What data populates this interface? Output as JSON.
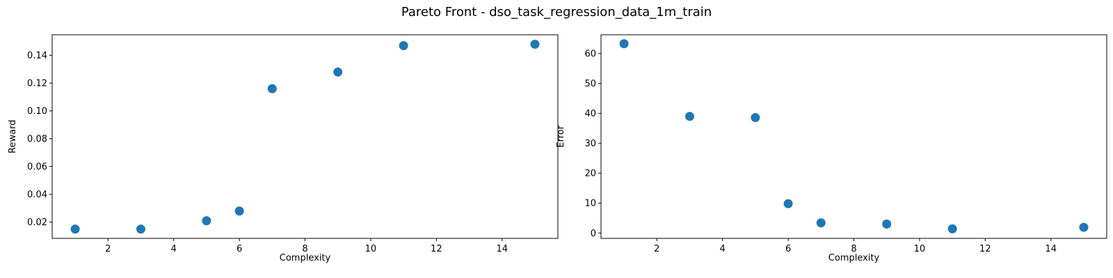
{
  "figure": {
    "title": "Pareto Front - dso_task_regression_data_1m_train"
  },
  "chart_data": [
    {
      "type": "scatter",
      "title": "",
      "xlabel": "Complexity",
      "ylabel": "Reward",
      "xlim": [
        0.3,
        15.7
      ],
      "ylim": [
        0.0083,
        0.1548
      ],
      "xticks": [
        2,
        4,
        6,
        8,
        10,
        12,
        14
      ],
      "yticks": [
        0.02,
        0.04,
        0.06,
        0.08,
        0.1,
        0.12,
        0.14
      ],
      "ytick_labels": [
        "0.02",
        "0.04",
        "0.06",
        "0.08",
        "0.10",
        "0.12",
        "0.14"
      ],
      "grid": false,
      "marker_color": "#1f77b4",
      "x": [
        1,
        3,
        5,
        6,
        7,
        9,
        11,
        15
      ],
      "y": [
        0.015,
        0.015,
        0.021,
        0.028,
        0.116,
        0.128,
        0.147,
        0.148
      ]
    },
    {
      "type": "scatter",
      "title": "",
      "xlabel": "Complexity",
      "ylabel": "Error",
      "xlim": [
        0.3,
        15.7
      ],
      "ylim": [
        -1.8,
        66.3
      ],
      "xticks": [
        2,
        4,
        6,
        8,
        10,
        12,
        14
      ],
      "yticks": [
        0,
        10,
        20,
        30,
        40,
        50,
        60
      ],
      "ytick_labels": [
        "0",
        "10",
        "20",
        "30",
        "40",
        "50",
        "60"
      ],
      "grid": false,
      "marker_color": "#1f77b4",
      "x": [
        1,
        3,
        5,
        6,
        7,
        9,
        11,
        15
      ],
      "y": [
        63.3,
        39.0,
        38.6,
        9.8,
        3.4,
        3.0,
        1.4,
        1.9
      ]
    }
  ]
}
